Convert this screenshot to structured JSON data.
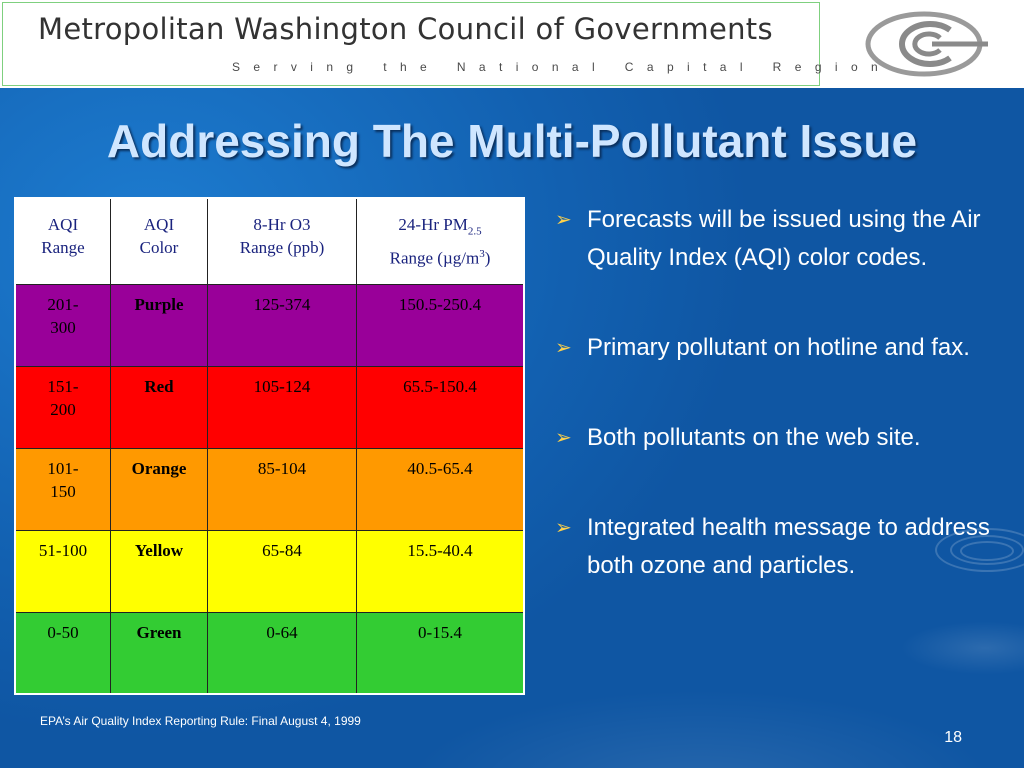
{
  "header": {
    "org_name": "Metropolitan Washington Council of Governments",
    "tagline": "Serving the National Capital Region",
    "logo_icon": "mwcog-logo-icon"
  },
  "slide": {
    "title": "Addressing The Multi-Pollutant Issue",
    "footnote": "EPA’s Air Quality Index Reporting Rule: Final August 4, 1999",
    "page_number": "18"
  },
  "table": {
    "headers": [
      [
        "AQI",
        "Range"
      ],
      [
        "AQI",
        "Color"
      ],
      [
        "8-Hr O3",
        "Range (ppb)"
      ],
      [
        "24-Hr PM",
        "2.5",
        "Range (µg/m",
        "3",
        ")"
      ]
    ],
    "rows": [
      {
        "range": "201-300",
        "range_lines": [
          "201-",
          "300"
        ],
        "color": "Purple",
        "o3": "125-374",
        "pm": "150.5-250.4",
        "bg": "#990099"
      },
      {
        "range": "151-200",
        "range_lines": [
          "151-",
          "200"
        ],
        "color": "Red",
        "o3": "105-124",
        "pm": "65.5-150.4",
        "bg": "#ff0000"
      },
      {
        "range": "101-150",
        "range_lines": [
          "101-",
          "150"
        ],
        "color": "Orange",
        "o3": "85-104",
        "pm": "40.5-65.4",
        "bg": "#ff9900"
      },
      {
        "range": "51-100",
        "range_lines": [
          "51-100"
        ],
        "color": "Yellow",
        "o3": "65-84",
        "pm": "15.5-40.4",
        "bg": "#ffff00"
      },
      {
        "range": "0-50",
        "range_lines": [
          "0-50"
        ],
        "color": "Green",
        "o3": "0-64",
        "pm": "0-15.4",
        "bg": "#33cc33"
      }
    ]
  },
  "bullets": [
    "Forecasts will be issued using the Air Quality Index (AQI) color codes.",
    "Primary pollutant on hotline and fax.",
    "Both pollutants on the web site.",
    "Integrated health message to address both ozone and particles."
  ],
  "colors": {
    "background": "#1566b8",
    "title": "#cfe6ff",
    "bullet_arrow": "#ffd24a",
    "header_text": "#1a237e"
  }
}
